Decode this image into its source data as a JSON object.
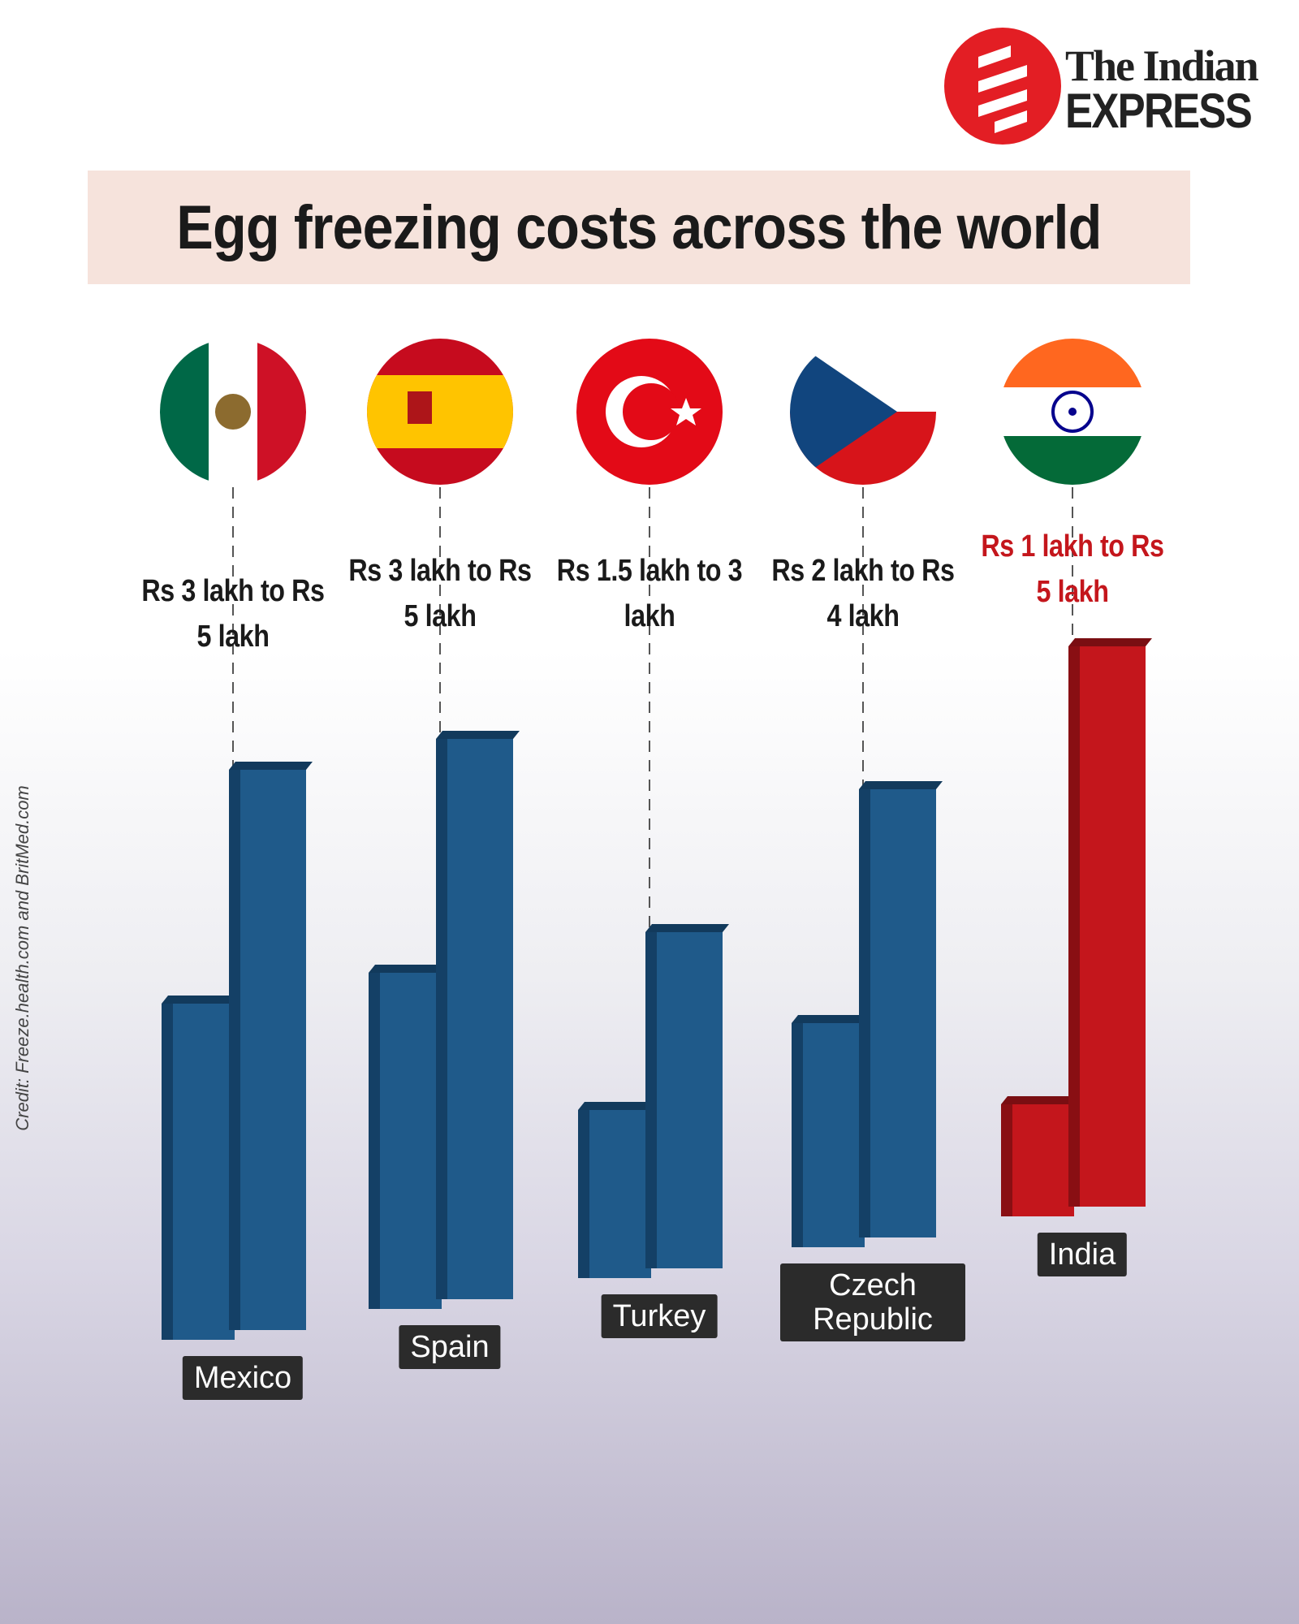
{
  "logo": {
    "line1": "The Indian",
    "line2": "EXPRESS"
  },
  "credit": "Credit: Freeze.health.com and BritMed.com",
  "chart_data": {
    "type": "bar",
    "title": "Egg freezing costs across the world",
    "categories": [
      "Mexico",
      "Spain",
      "Turkey",
      "Czech Republic",
      "India"
    ],
    "series": [
      {
        "values": [
          3,
          3,
          1.5,
          2,
          1
        ],
        "colors": [
          "#1f5a8a",
          "#1f5a8a",
          "#1f5a8a",
          "#1f5a8a",
          "#c4161c"
        ]
      },
      {
        "values": [
          5,
          5,
          3,
          4,
          5
        ],
        "colors": [
          "#1f5a8a",
          "#1f5a8a",
          "#1f5a8a",
          "#1f5a8a",
          "#c4161c"
        ]
      }
    ],
    "value_labels": [
      "Rs 3 lakh to Rs 5 lakh",
      "Rs 3 lakh to Rs 5 lakh",
      "Rs 1.5 lakh to 3 lakh",
      "Rs 2 lakh to Rs 4 lakh",
      "Rs 1 lakh to Rs 5 lakh"
    ],
    "value_label_colors": [
      "#1a1a1a",
      "#1a1a1a",
      "#1a1a1a",
      "#1a1a1a",
      "#c4161c"
    ]
  }
}
